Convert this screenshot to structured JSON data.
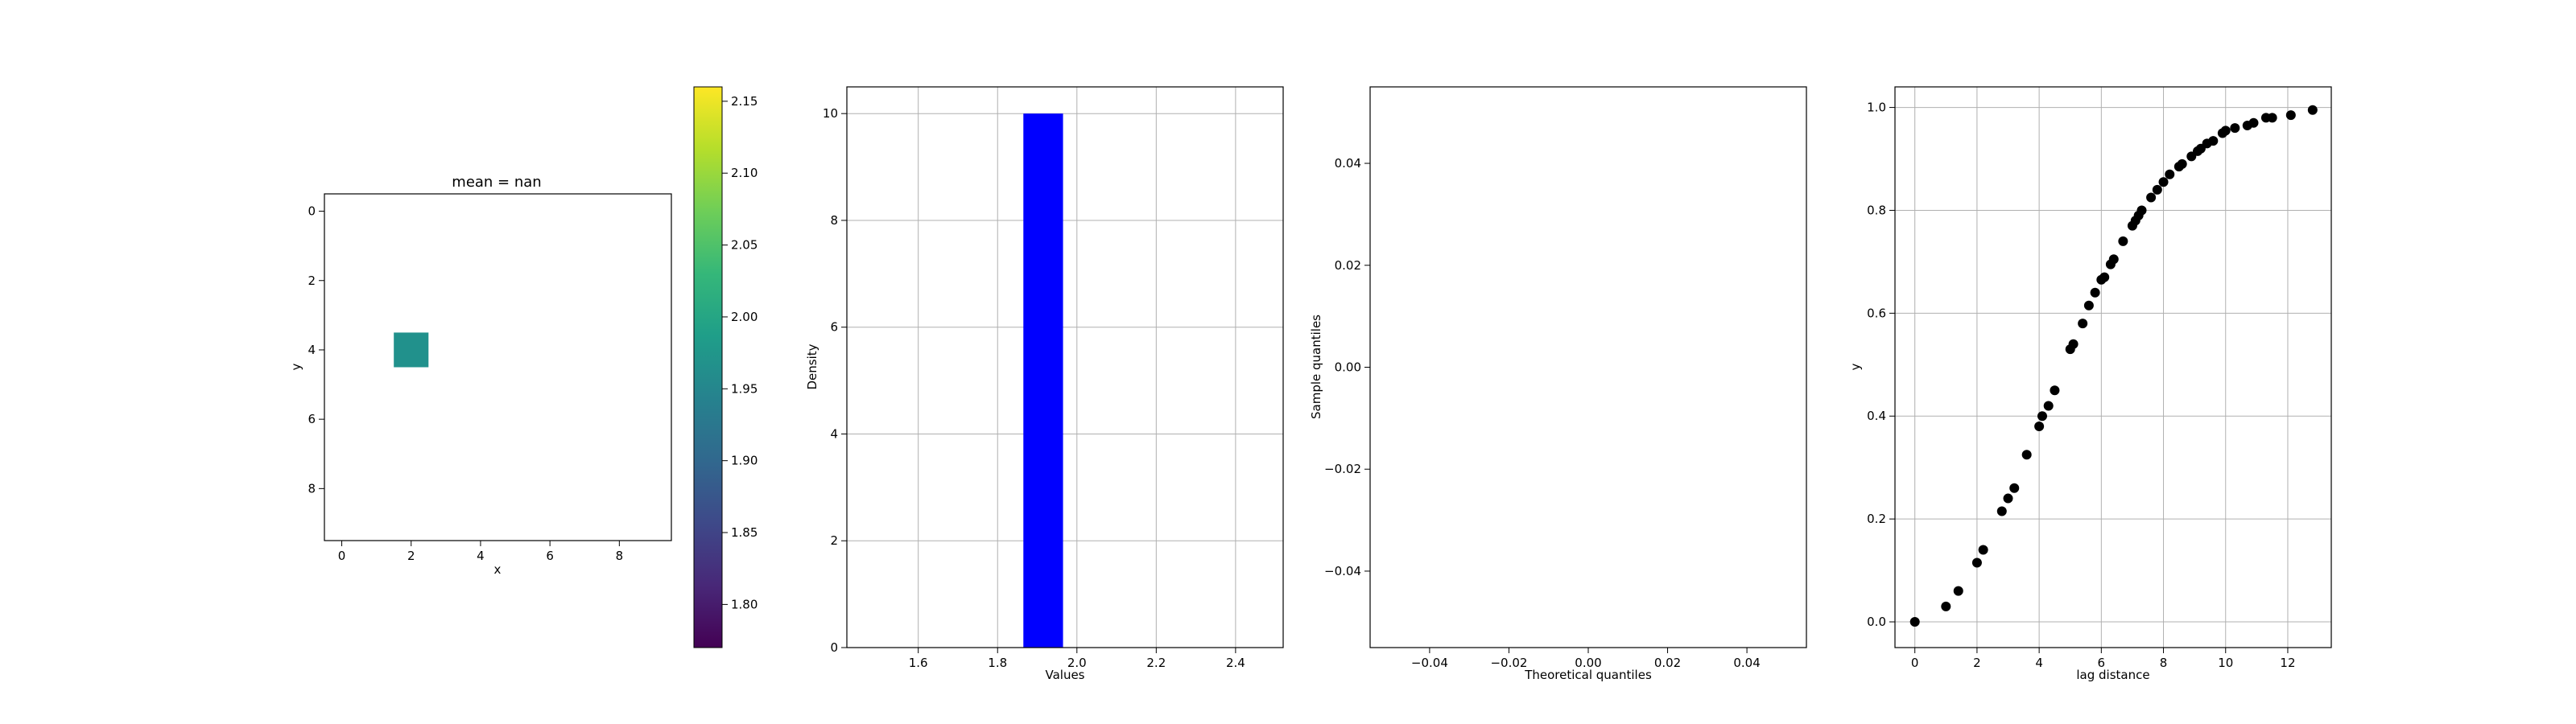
{
  "colors": {
    "bar": "#0000ff",
    "point": "#000000",
    "heatmap_cell": "#21918c",
    "grid": "#b0b0b0",
    "axes": "#000000",
    "colormap": [
      "#440154",
      "#482878",
      "#3e4989",
      "#31688e",
      "#26828e",
      "#1f9e89",
      "#35b779",
      "#6ece58",
      "#b5de2b",
      "#fde725"
    ]
  },
  "chart_data": [
    {
      "type": "heatmap",
      "title": "mean = nan",
      "xlabel": "x",
      "ylabel": "y",
      "xlim": [
        -0.5,
        9.5
      ],
      "ylim": [
        9.5,
        -0.5
      ],
      "x_ticks": [
        "0",
        "2",
        "4",
        "6",
        "8"
      ],
      "y_ticks": [
        "0",
        "2",
        "4",
        "6",
        "8"
      ],
      "cells": [
        {
          "x": 2,
          "y": 4,
          "value": 1.965
        }
      ],
      "colormap": "viridis",
      "colorbar": {
        "range": [
          1.77,
          2.16
        ],
        "ticks": [
          "1.80",
          "1.85",
          "1.90",
          "1.95",
          "2.00",
          "2.05",
          "2.10",
          "2.15"
        ]
      }
    },
    {
      "type": "bar",
      "title": "",
      "xlabel": "Values",
      "ylabel": "Density",
      "xlim": [
        1.42,
        2.52
      ],
      "ylim": [
        0,
        10.5
      ],
      "x_ticks": [
        "1.6",
        "1.8",
        "2.0",
        "2.2",
        "2.4"
      ],
      "y_ticks": [
        "0",
        "2",
        "4",
        "6",
        "8",
        "10"
      ],
      "bars": [
        {
          "x0": 1.865,
          "x1": 1.965,
          "value": 10
        }
      ],
      "grid": true
    },
    {
      "type": "scatter",
      "title": "",
      "xlabel": "Theoretical quantiles",
      "ylabel": "Sample quantiles",
      "xlim": [
        -0.055,
        0.055
      ],
      "ylim": [
        -0.055,
        0.055
      ],
      "x_ticks": [
        "−0.04",
        "−0.02",
        "0.00",
        "0.02",
        "0.04"
      ],
      "y_ticks": [
        "−0.04",
        "−0.02",
        "0.00",
        "0.02",
        "0.04"
      ],
      "points": [],
      "grid": false
    },
    {
      "type": "scatter",
      "title": "",
      "xlabel": "lag distance",
      "ylabel": "y",
      "xlim": [
        -0.64,
        13.4
      ],
      "ylim": [
        -0.05,
        1.04
      ],
      "x_ticks": [
        "0",
        "2",
        "4",
        "6",
        "8",
        "10",
        "12"
      ],
      "y_ticks": [
        "0.0",
        "0.2",
        "0.4",
        "0.6",
        "0.8",
        "1.0"
      ],
      "grid": true,
      "points": [
        [
          0.0,
          0.0
        ],
        [
          1.0,
          0.03
        ],
        [
          1.4,
          0.06
        ],
        [
          2.0,
          0.115
        ],
        [
          2.2,
          0.14
        ],
        [
          2.8,
          0.215
        ],
        [
          3.0,
          0.24
        ],
        [
          3.2,
          0.26
        ],
        [
          3.6,
          0.325
        ],
        [
          4.0,
          0.38
        ],
        [
          4.1,
          0.4
        ],
        [
          4.3,
          0.42
        ],
        [
          4.5,
          0.45
        ],
        [
          5.0,
          0.53
        ],
        [
          5.1,
          0.54
        ],
        [
          5.4,
          0.58
        ],
        [
          5.6,
          0.615
        ],
        [
          5.8,
          0.64
        ],
        [
          6.0,
          0.665
        ],
        [
          6.1,
          0.67
        ],
        [
          6.3,
          0.695
        ],
        [
          6.4,
          0.705
        ],
        [
          6.7,
          0.74
        ],
        [
          7.0,
          0.77
        ],
        [
          7.1,
          0.78
        ],
        [
          7.2,
          0.79
        ],
        [
          7.3,
          0.8
        ],
        [
          7.6,
          0.825
        ],
        [
          7.8,
          0.84
        ],
        [
          8.0,
          0.855
        ],
        [
          8.2,
          0.87
        ],
        [
          8.5,
          0.885
        ],
        [
          8.6,
          0.89
        ],
        [
          8.9,
          0.905
        ],
        [
          9.1,
          0.915
        ],
        [
          9.2,
          0.92
        ],
        [
          9.4,
          0.93
        ],
        [
          9.6,
          0.935
        ],
        [
          9.9,
          0.95
        ],
        [
          10.0,
          0.955
        ],
        [
          10.3,
          0.96
        ],
        [
          10.7,
          0.965
        ],
        [
          10.9,
          0.97
        ],
        [
          11.3,
          0.98
        ],
        [
          11.5,
          0.98
        ],
        [
          12.1,
          0.985
        ],
        [
          12.8,
          0.995
        ]
      ]
    }
  ]
}
